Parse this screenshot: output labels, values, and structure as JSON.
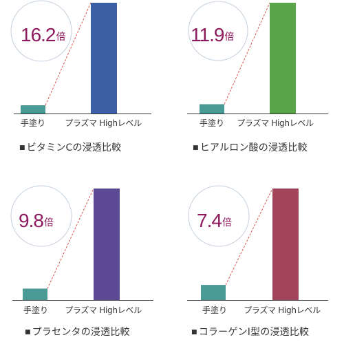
{
  "chart_data": [
    {
      "type": "bar",
      "categories": [
        "手塗り",
        "プラズマ Highレベル"
      ],
      "values": [
        1,
        16.2
      ],
      "magnification": "16.2",
      "unit": "倍",
      "caption": "ビタミンCの浸透比較",
      "bar_colors": [
        "#4a9a96",
        "#3c5fa6"
      ]
    },
    {
      "type": "bar",
      "categories": [
        "手塗り",
        "プラズマ Highレベル"
      ],
      "values": [
        1,
        11.9
      ],
      "magnification": "11.9",
      "unit": "倍",
      "caption": "ヒアルロン酸の浸透比較",
      "bar_colors": [
        "#4a9a96",
        "#5aa44a"
      ]
    },
    {
      "type": "bar",
      "categories": [
        "手塗り",
        "プラズマ Highレベル"
      ],
      "values": [
        1,
        9.8
      ],
      "magnification": "9.8",
      "unit": "倍",
      "caption": "プラセンタの浸透比較",
      "bar_colors": [
        "#4a9a96",
        "#5d4a96"
      ]
    },
    {
      "type": "bar",
      "categories": [
        "手塗り",
        "プラズマ Highレベル"
      ],
      "values": [
        1,
        7.4
      ],
      "magnification": "7.4",
      "unit": "倍",
      "caption": "コラーゲンⅠ型の浸透比較",
      "bar_colors": [
        "#4a9a96",
        "#a3455a"
      ]
    }
  ],
  "colors": {
    "number": "#8e1a5e",
    "circle": "#c5d0de",
    "dashed": "#d9584f",
    "axis": "#333333",
    "caption": "#333333"
  }
}
